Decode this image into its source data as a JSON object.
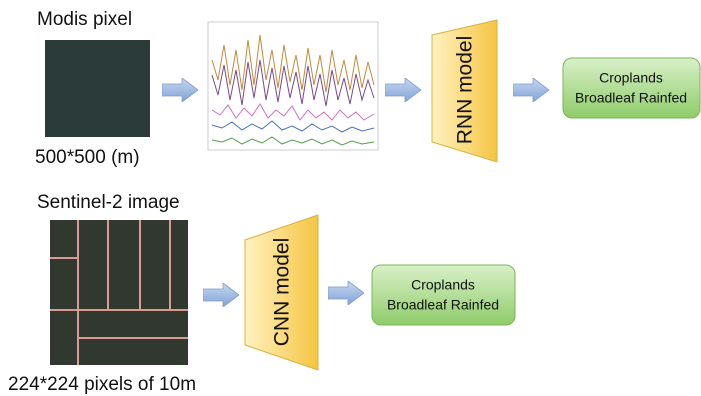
{
  "rows": [
    {
      "input_title": "Modis pixel",
      "input_caption": "500*500 (m)",
      "model": "RNN model",
      "output": [
        "Croplands",
        "Broadleaf Rainfed"
      ]
    },
    {
      "input_title": "Sentinel-2 image",
      "input_caption": "224*224 pixels of 10m",
      "model": "CNN model",
      "output": [
        "Croplands",
        "Broadleaf Rainfed"
      ]
    }
  ]
}
